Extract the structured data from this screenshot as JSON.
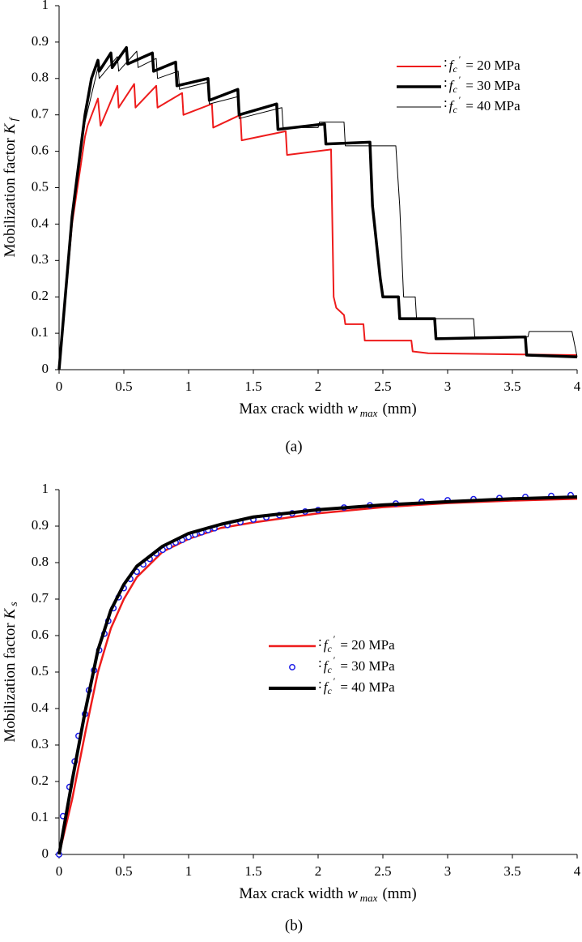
{
  "chart_data": [
    {
      "type": "line",
      "caption": "(a)",
      "xlabel": {
        "text": "Max crack width",
        "var": "w",
        "sub": "max",
        "unit": "(mm)"
      },
      "ylabel": {
        "text": "Mobilization factor",
        "var": "K",
        "sub": "f"
      },
      "xlim": [
        0,
        4
      ],
      "xticks": [
        0,
        0.5,
        1,
        1.5,
        2,
        2.5,
        3,
        3.5,
        4
      ],
      "ylim": [
        0,
        1
      ],
      "yticks": [
        0,
        0.1,
        0.2,
        0.3,
        0.4,
        0.5,
        0.6,
        0.7,
        0.8,
        0.9,
        1
      ],
      "grid": false,
      "legend": "upper right",
      "legend_prefix": {
        "lead": ":",
        "var": "f",
        "sub": "c",
        "sup": "′"
      },
      "series": [
        {
          "name": "= 20 MPa",
          "color": "#ee1c1c",
          "line_width": 2,
          "x": [
            0,
            0.1,
            0.2,
            0.22,
            0.3,
            0.32,
            0.45,
            0.46,
            0.58,
            0.59,
            0.75,
            0.76,
            0.95,
            0.96,
            1.18,
            1.19,
            1.4,
            1.41,
            1.75,
            1.76,
            2.1,
            2.11,
            2.12,
            2.14,
            2.2,
            2.21,
            2.35,
            2.36,
            2.72,
            2.73,
            2.85,
            4
          ],
          "values": [
            0,
            0.4,
            0.64,
            0.67,
            0.745,
            0.67,
            0.78,
            0.72,
            0.785,
            0.72,
            0.78,
            0.72,
            0.76,
            0.7,
            0.73,
            0.665,
            0.7,
            0.63,
            0.655,
            0.59,
            0.605,
            0.4,
            0.2,
            0.17,
            0.15,
            0.125,
            0.125,
            0.08,
            0.08,
            0.05,
            0.045,
            0.04
          ]
        },
        {
          "name": "= 30 MPa",
          "color": "#000000",
          "line_width": 3.5,
          "x": [
            0,
            0.1,
            0.2,
            0.25,
            0.3,
            0.31,
            0.4,
            0.41,
            0.52,
            0.53,
            0.72,
            0.73,
            0.9,
            0.91,
            1.15,
            1.16,
            1.38,
            1.39,
            1.68,
            1.69,
            2.05,
            2.06,
            2.4,
            2.42,
            2.45,
            2.48,
            2.5,
            2.62,
            2.63,
            2.9,
            2.91,
            3.6,
            3.61,
            4
          ],
          "values": [
            0,
            0.42,
            0.7,
            0.8,
            0.85,
            0.82,
            0.87,
            0.83,
            0.885,
            0.84,
            0.87,
            0.82,
            0.845,
            0.78,
            0.8,
            0.74,
            0.77,
            0.7,
            0.73,
            0.66,
            0.675,
            0.62,
            0.625,
            0.45,
            0.35,
            0.25,
            0.2,
            0.2,
            0.14,
            0.14,
            0.085,
            0.09,
            0.04,
            0.035
          ]
        },
        {
          "name": "= 40 MPa",
          "color": "#000000",
          "line_width": 1,
          "x": [
            0,
            0.1,
            0.2,
            0.3,
            0.31,
            0.45,
            0.46,
            0.6,
            0.61,
            0.75,
            0.76,
            0.92,
            0.93,
            1.15,
            1.16,
            1.38,
            1.39,
            1.72,
            1.73,
            2.0,
            2.01,
            2.2,
            2.21,
            2.6,
            2.63,
            2.66,
            2.75,
            2.76,
            3.2,
            3.21,
            3.62,
            3.63,
            3.96,
            4
          ],
          "values": [
            0,
            0.42,
            0.68,
            0.83,
            0.8,
            0.86,
            0.82,
            0.875,
            0.83,
            0.855,
            0.8,
            0.82,
            0.77,
            0.79,
            0.73,
            0.75,
            0.69,
            0.72,
            0.665,
            0.665,
            0.68,
            0.68,
            0.615,
            0.615,
            0.45,
            0.2,
            0.2,
            0.14,
            0.14,
            0.09,
            0.09,
            0.105,
            0.105,
            0.035
          ]
        }
      ]
    },
    {
      "type": "line",
      "caption": "(b)",
      "xlabel": {
        "text": "Max crack width",
        "var": "w",
        "sub": "max",
        "unit": "(mm)"
      },
      "ylabel": {
        "text": "Mobilization factor",
        "var": "K",
        "sub": "s"
      },
      "xlim": [
        0,
        4
      ],
      "xticks": [
        0,
        0.5,
        1,
        1.5,
        2,
        2.5,
        3,
        3.5,
        4
      ],
      "ylim": [
        0,
        1
      ],
      "yticks": [
        0,
        0.1,
        0.2,
        0.3,
        0.4,
        0.5,
        0.6,
        0.7,
        0.8,
        0.9,
        1
      ],
      "grid": false,
      "legend": "center",
      "legend_prefix": {
        "lead": ":",
        "var": "f",
        "sub": "c",
        "sup": "′"
      },
      "series": [
        {
          "name": "= 20 MPa",
          "color": "#ee1c1c",
          "line_width": 2.5,
          "x": [
            0,
            0.1,
            0.2,
            0.3,
            0.4,
            0.5,
            0.6,
            0.8,
            1,
            1.25,
            1.5,
            2,
            2.5,
            3,
            3.5,
            4
          ],
          "values": [
            0,
            0.15,
            0.33,
            0.5,
            0.62,
            0.7,
            0.76,
            0.83,
            0.865,
            0.895,
            0.91,
            0.935,
            0.952,
            0.963,
            0.97,
            0.975
          ]
        },
        {
          "name": "= 30 MPa",
          "color": "#1a1ae6",
          "marker": "circle",
          "x": [
            0,
            0.03,
            0.08,
            0.12,
            0.15,
            0.2,
            0.23,
            0.27,
            0.31,
            0.35,
            0.38,
            0.42,
            0.46,
            0.5,
            0.55,
            0.6,
            0.65,
            0.7,
            0.75,
            0.8,
            0.85,
            0.9,
            0.95,
            1.0,
            1.05,
            1.1,
            1.15,
            1.2,
            1.3,
            1.4,
            1.5,
            1.6,
            1.7,
            1.8,
            1.9,
            2.0,
            2.2,
            2.4,
            2.6,
            2.8,
            3.0,
            3.2,
            3.4,
            3.6,
            3.8,
            3.95
          ],
          "values": [
            0,
            0.105,
            0.185,
            0.255,
            0.325,
            0.385,
            0.45,
            0.505,
            0.56,
            0.605,
            0.64,
            0.675,
            0.705,
            0.73,
            0.755,
            0.775,
            0.795,
            0.81,
            0.825,
            0.835,
            0.845,
            0.855,
            0.862,
            0.87,
            0.877,
            0.883,
            0.889,
            0.894,
            0.903,
            0.911,
            0.918,
            0.924,
            0.93,
            0.935,
            0.94,
            0.944,
            0.951,
            0.957,
            0.962,
            0.967,
            0.971,
            0.974,
            0.977,
            0.98,
            0.983,
            0.985
          ]
        },
        {
          "name": "= 40 MPa",
          "color": "#000000",
          "line_width": 4,
          "x": [
            0,
            0.1,
            0.2,
            0.3,
            0.4,
            0.5,
            0.6,
            0.8,
            1,
            1.25,
            1.5,
            2,
            2.5,
            3,
            3.5,
            4
          ],
          "values": [
            0,
            0.2,
            0.39,
            0.56,
            0.67,
            0.74,
            0.79,
            0.845,
            0.88,
            0.905,
            0.925,
            0.945,
            0.958,
            0.967,
            0.975,
            0.98
          ]
        }
      ]
    }
  ]
}
